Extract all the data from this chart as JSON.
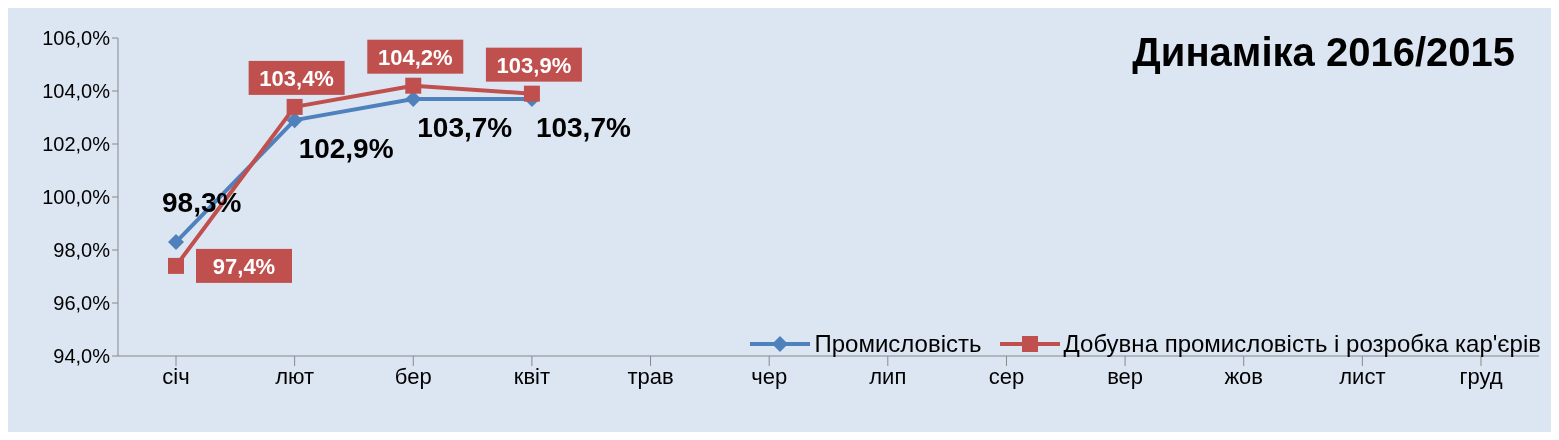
{
  "chart_data": {
    "type": "line",
    "title": "Динаміка 2016/2015",
    "categories": [
      "січ",
      "лют",
      "бер",
      "квіт",
      "трав",
      "чер",
      "лип",
      "сер",
      "вер",
      "жов",
      "лист",
      "груд"
    ],
    "series": [
      {
        "name": "Промисловість",
        "color": "#4f81bd",
        "marker": "diamond",
        "values": [
          98.3,
          102.9,
          103.7,
          103.7,
          null,
          null,
          null,
          null,
          null,
          null,
          null,
          null
        ],
        "value_labels": [
          "98,3%",
          "102,9%",
          "103,7%",
          "103,7%",
          null,
          null,
          null,
          null,
          null,
          null,
          null,
          null
        ]
      },
      {
        "name": "Добувна промисловість і розробка кар'єрів",
        "color": "#c0504d",
        "marker": "square",
        "values": [
          97.4,
          103.4,
          104.2,
          103.9,
          null,
          null,
          null,
          null,
          null,
          null,
          null,
          null
        ],
        "value_labels": [
          "97,4%",
          "103,4%",
          "104,2%",
          "103,9%",
          null,
          null,
          null,
          null,
          null,
          null,
          null,
          null
        ]
      }
    ],
    "ylim": [
      94,
      106
    ],
    "yticks": [
      {
        "value": 94,
        "label": "94,0%"
      },
      {
        "value": 96,
        "label": "96,0%"
      },
      {
        "value": 98,
        "label": "98,0%"
      },
      {
        "value": 100,
        "label": "100,0%"
      },
      {
        "value": 102,
        "label": "102,0%"
      },
      {
        "value": 104,
        "label": "104,0%"
      },
      {
        "value": 106,
        "label": "106,0%"
      }
    ],
    "grid": false,
    "legend": "bottom right",
    "line_style": "solid"
  }
}
